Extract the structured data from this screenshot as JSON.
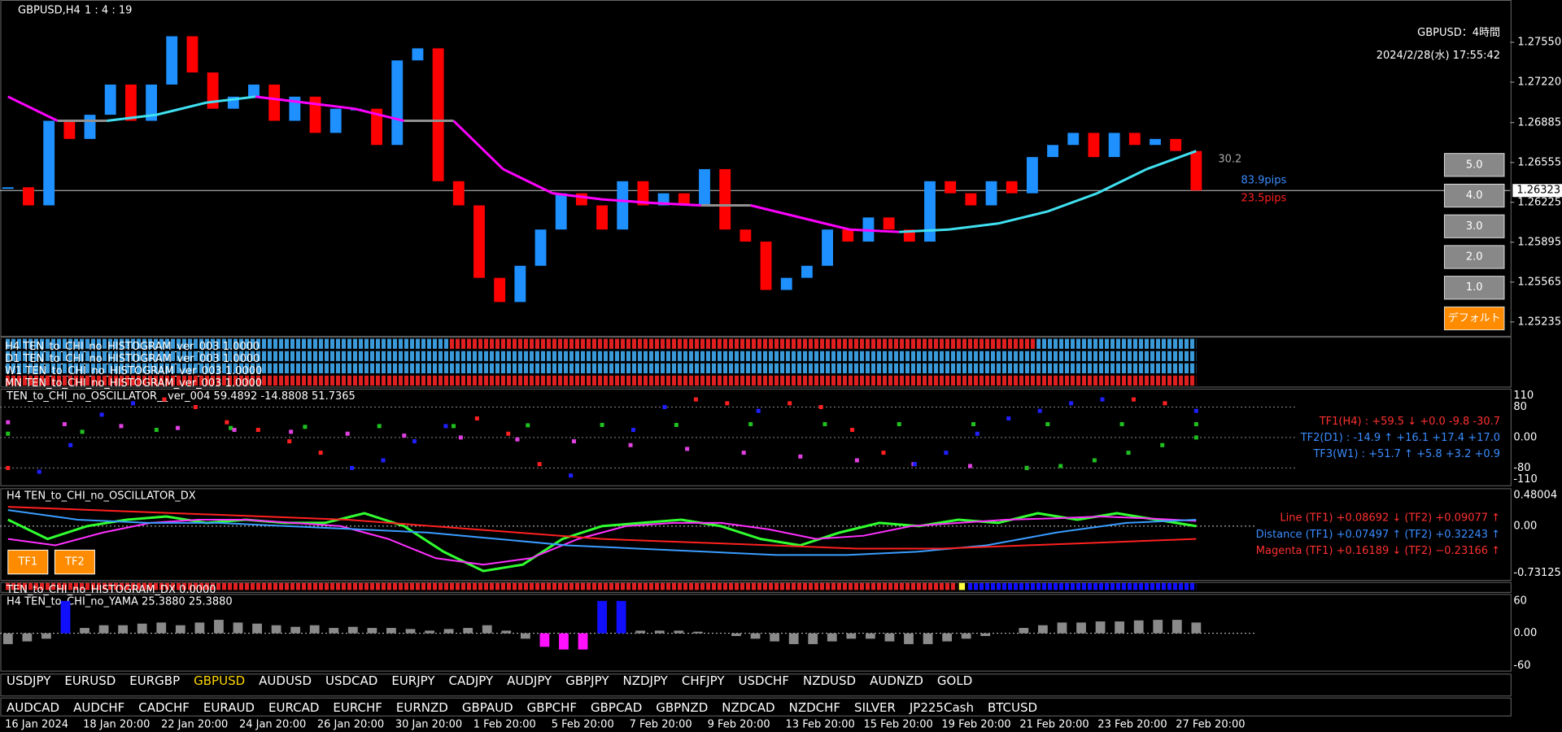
{
  "header": {
    "symbol": "GBPUSD,H4",
    "clock": "1 : 4 : 19"
  },
  "main": {
    "title": "GBPUSD：4時間",
    "datetime": "2024/2/28(水) 17:55:42",
    "ylim": [
      1.2512,
      1.279
    ],
    "price_ticks": [
      {
        "value": 1.2755,
        "label": "1.27550"
      },
      {
        "value": 1.2722,
        "label": "1.27220"
      },
      {
        "value": 1.26885,
        "label": "1.26885"
      },
      {
        "value": 1.26555,
        "label": "1.26555"
      },
      {
        "value": 1.26225,
        "label": "1.26225"
      },
      {
        "value": 1.25895,
        "label": "1.25895"
      },
      {
        "value": 1.25565,
        "label": "1.25565"
      },
      {
        "value": 1.25235,
        "label": "1.25235"
      }
    ],
    "current_price": {
      "value": 1.26323,
      "label": "1.26323"
    },
    "range_label": "30.2",
    "pips_blue": "83.9pips",
    "pips_red": "23.5pips",
    "buttons": [
      "5.0",
      "4.0",
      "3.0",
      "2.0",
      "1.0",
      "デフォルト"
    ],
    "candle_colors": {
      "up": "#1e90ff",
      "down": "#ff0000"
    },
    "closes": [
      1.2635,
      1.262,
      1.269,
      1.2675,
      1.2695,
      1.272,
      1.269,
      1.272,
      1.276,
      1.273,
      1.27,
      1.271,
      1.272,
      1.269,
      1.271,
      1.268,
      1.27,
      1.27,
      1.267,
      1.274,
      1.275,
      1.264,
      1.262,
      1.256,
      1.254,
      1.257,
      1.26,
      1.263,
      1.262,
      1.26,
      1.264,
      1.262,
      1.263,
      1.262,
      1.265,
      1.26,
      1.259,
      1.255,
      1.256,
      1.257,
      1.26,
      1.259,
      1.261,
      1.26,
      1.259,
      1.264,
      1.263,
      1.262,
      1.264,
      1.263,
      1.266,
      1.267,
      1.268,
      1.266,
      1.268,
      1.267,
      1.2675,
      1.2665,
      1.26323
    ],
    "ma": [
      1.271,
      1.269,
      1.269,
      1.2695,
      1.2705,
      1.271,
      1.2705,
      1.27,
      1.269,
      1.269,
      1.265,
      1.263,
      1.2625,
      1.2622,
      1.262,
      1.262,
      1.261,
      1.26,
      1.2598,
      1.26,
      1.2605,
      1.2615,
      1.263,
      1.265,
      1.2665
    ],
    "ma_colors": {
      "up": "#40e0f0",
      "down": "#ff00ff",
      "flat": "#909090"
    }
  },
  "histograms": [
    "H4 TEN_to_CHI_no_HISTOGRAM_ver_003 1.0000",
    "D1 TEN_to_CHI_no_HISTOGRAM_ver_003 1.0000",
    "W1 TEN_to_CHI_no_HISTOGRAM_ver_003 1.0000",
    "MN TEN_to_CHI_no_HISTOGRAM_ver_003 1.0000"
  ],
  "oscillator": {
    "title": "TEN_to_CHI_no_OSCILLATOR__ver_004 59.4892 -14.8808 51.7365",
    "ylim": [
      -110,
      110
    ],
    "ticks": [
      {
        "value": 110,
        "label": "110"
      },
      {
        "value": 80,
        "label": "80"
      },
      {
        "value": 0,
        "label": "0.00"
      },
      {
        "value": -80,
        "label": "-80"
      },
      {
        "value": -110,
        "label": "-110"
      }
    ],
    "readouts": [
      {
        "text": "TF1(H4) : +59.5 ↓ +0.0 -9.8 -30.7",
        "color": "#ff3030"
      },
      {
        "text": "TF2(D1) : -14.9 ↑ +16.1 +17.4 +17.0",
        "color": "#3a8cff"
      },
      {
        "text": "TF3(W1) : +51.7 ↑ +5.8 +3.2 +0.9",
        "color": "#3a8cff"
      }
    ],
    "tf1": {
      "colors": {
        "up": "#2020ff",
        "down": "#ff2020"
      },
      "values": [
        -80,
        -90,
        -20,
        60,
        90,
        100,
        80,
        40,
        20,
        -10,
        -40,
        -80,
        -60,
        -10,
        30,
        50,
        10,
        -70,
        -100,
        null,
        20,
        80,
        100,
        90,
        70,
        90,
        80,
        20,
        -40,
        -70,
        -40,
        10,
        50,
        70,
        90,
        100,
        100,
        90,
        70
      ]
    },
    "tf2": {
      "color": "#20c020",
      "values": [
        10,
        15,
        20,
        25,
        28,
        30,
        30,
        32,
        33,
        33,
        35,
        35,
        35,
        35,
        35,
        35,
        35
      ]
    },
    "tf3": {
      "color": "#e040e0",
      "values": [
        40,
        35,
        30,
        25,
        20,
        15,
        10,
        5,
        0,
        -5,
        -10,
        -20,
        -30,
        -40,
        -50,
        -60,
        -70,
        -75,
        -80
      ]
    },
    "tf3_tail": {
      "color": "#20c020",
      "values": [
        -80,
        -75,
        -60,
        -40,
        -20,
        0
      ]
    }
  },
  "dx": {
    "title": "H4 TEN_to_CHI_no_OSCILLATOR_DX",
    "ylim": [
      -0.73125,
      0.48004
    ],
    "ticks": [
      {
        "value": 0.48004,
        "label": "0.48004"
      },
      {
        "value": 0,
        "label": "0.00"
      },
      {
        "value": -0.73125,
        "label": "-0.73125"
      }
    ],
    "readouts": [
      {
        "text": "Line (TF1) +0.08692 ↓ (TF2) +0.09077 ↑",
        "color": "#ff3030"
      },
      {
        "text": "Distance (TF1) +0.07497 ↑ (TF2) +0.32243 ↑",
        "color": "#3a8cff"
      },
      {
        "text": "Magenta (TF1) +0.16189 ↓ (TF2) −0.23166 ↑",
        "color": "#ff3030"
      }
    ],
    "buttons": [
      "TF1",
      "TF2"
    ],
    "series": [
      {
        "color": "#30ff30",
        "values": [
          0.1,
          -0.2,
          0,
          0.1,
          0.15,
          0.05,
          0.1,
          0.05,
          0.05,
          0.2,
          0,
          -0.4,
          -0.7,
          -0.6,
          -0.2,
          0,
          0.05,
          0.1,
          0,
          -0.2,
          -0.3,
          -0.1,
          0.05,
          0,
          0.1,
          0.05,
          0.2,
          0.1,
          0.2,
          0.1,
          0
        ]
      },
      {
        "color": "#ff30ff",
        "values": [
          -0.2,
          -0.3,
          -0.1,
          0.05,
          0.1,
          0.1,
          0.05,
          0,
          -0.2,
          -0.5,
          -0.6,
          -0.5,
          -0.2,
          0,
          0.05,
          0.05,
          -0.05,
          -0.2,
          -0.15,
          0,
          0.05,
          0.1,
          0.12,
          0.15,
          0.12,
          0.08
        ]
      },
      {
        "color": "#3a9cff",
        "values": [
          0.25,
          0.1,
          0.05,
          0.05,
          0,
          -0.05,
          -0.1,
          -0.2,
          -0.3,
          -0.35,
          -0.4,
          -0.45,
          -0.45,
          -0.4,
          -0.3,
          -0.1,
          0.05,
          0.1
        ]
      },
      {
        "color": "#ff2020",
        "values": [
          0.3,
          0.25,
          0.2,
          0.15,
          0.1,
          0,
          -0.1,
          -0.2,
          -0.25,
          -0.3,
          -0.35,
          -0.35,
          -0.3,
          -0.25,
          -0.2
        ]
      }
    ]
  },
  "dx_histogram": "TEN_to_CHI_no_HISTOGRAM_DX 0.0000",
  "yama": {
    "title": "H4  TEN_to_CHI_no_YAMA 25.3880 25.3880",
    "ylim": [
      -60,
      60
    ],
    "ticks": [
      {
        "value": 60,
        "label": "60"
      },
      {
        "value": 0,
        "label": "0.00"
      },
      {
        "value": -60,
        "label": "-60"
      }
    ],
    "colors": {
      "normal": "#8a8a8a",
      "high": "#1010ff",
      "low": "#ff10ff"
    },
    "values": [
      -20,
      -15,
      -10,
      60,
      10,
      15,
      15,
      18,
      20,
      15,
      20,
      25,
      20,
      18,
      15,
      12,
      15,
      10,
      12,
      10,
      10,
      8,
      5,
      8,
      10,
      15,
      5,
      -10,
      -25,
      -30,
      -30,
      60,
      60,
      5,
      5,
      5,
      3,
      0,
      -5,
      -10,
      -15,
      -20,
      -20,
      -15,
      -10,
      -10,
      -15,
      -20,
      -20,
      -15,
      -10,
      -5,
      0,
      10,
      15,
      20,
      20,
      22,
      22,
      24,
      25,
      25,
      20
    ]
  },
  "symbols_row1": [
    "USDJPY",
    "EURUSD",
    "EURGBP",
    "GBPUSD",
    "AUDUSD",
    "USDCAD",
    "EURJPY",
    "CADJPY",
    "AUDJPY",
    "GBPJPY",
    "NZDJPY",
    "CHFJPY",
    "USDCHF",
    "NZDUSD",
    "AUDNZD",
    "GOLD"
  ],
  "active_symbol": "GBPUSD",
  "symbols_row2": [
    "AUDCAD",
    "AUDCHF",
    "CADCHF",
    "EURAUD",
    "EURCAD",
    "EURCHF",
    "EURNZD",
    "GBPAUD",
    "GBPCHF",
    "GBPCAD",
    "GBPNZD",
    "NZDCAD",
    "NZDCHF",
    "SILVER",
    "JP225Cash",
    "BTCUSD"
  ],
  "dates": [
    "16 Jan 2024",
    "18 Jan 20:00",
    "22 Jan 20:00",
    "24 Jan 20:00",
    "26 Jan 20:00",
    "30 Jan 20:00",
    "1 Feb 20:00",
    "5 Feb 20:00",
    "7 Feb 20:00",
    "9 Feb 20:00",
    "13 Feb 20:00",
    "15 Feb 20:00",
    "19 Feb 20:00",
    "21 Feb 20:00",
    "23 Feb 20:00",
    "27 Feb 20:00"
  ]
}
